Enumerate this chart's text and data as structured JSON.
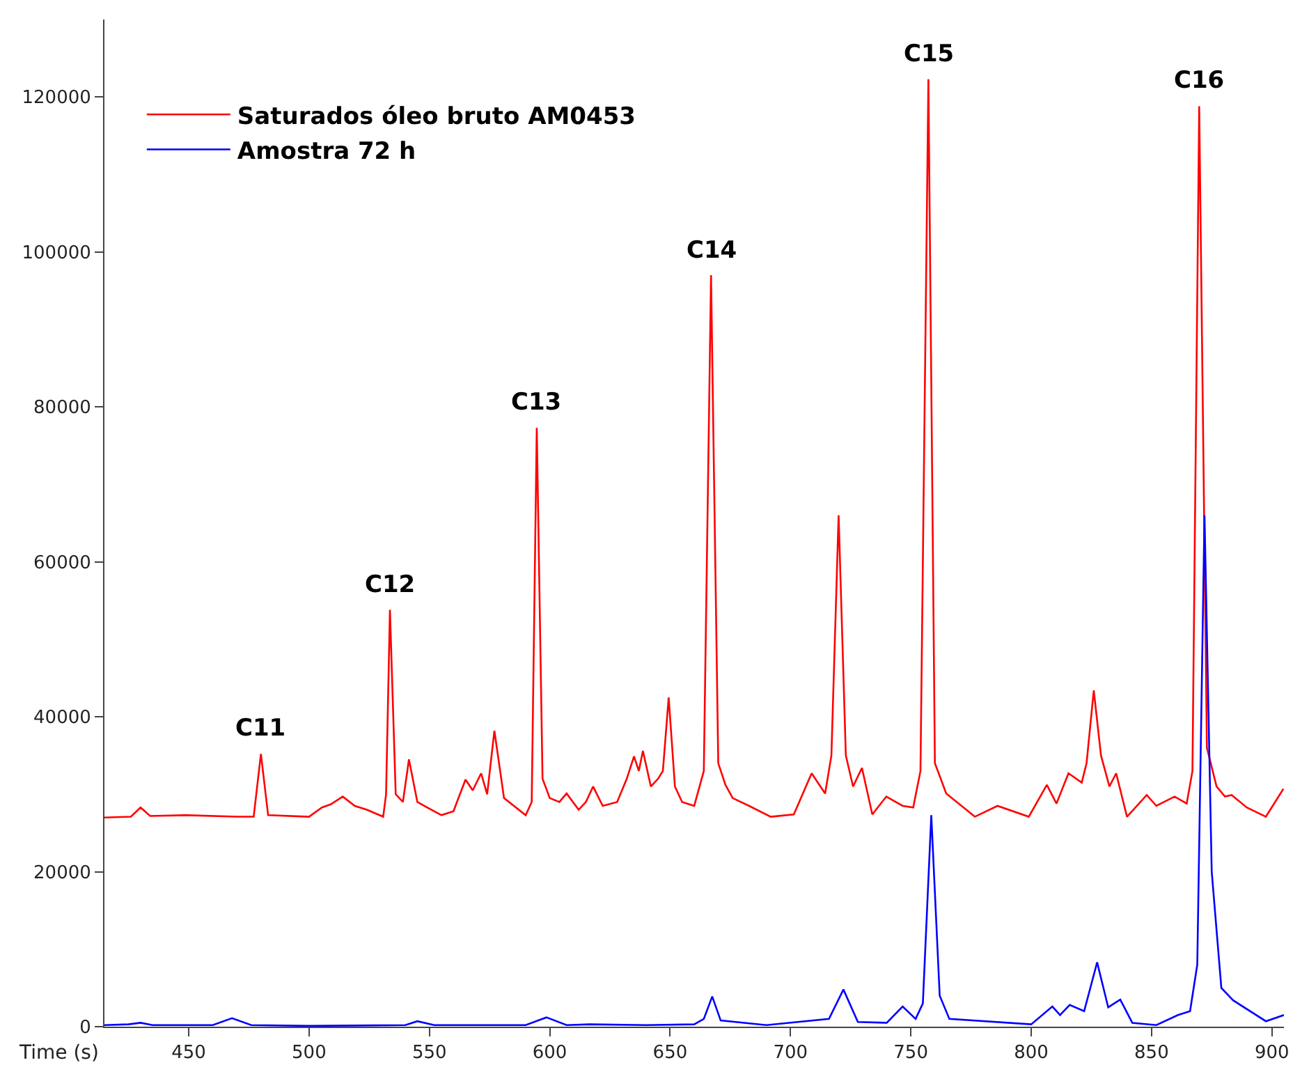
{
  "chart_data": {
    "type": "line",
    "xlabel": "Time (s)",
    "xlim": [
      415,
      905
    ],
    "ylim": [
      0,
      130000
    ],
    "xticks": [
      450,
      500,
      550,
      600,
      650,
      700,
      750,
      800,
      850,
      900
    ],
    "yticks": [
      0,
      20000,
      40000,
      60000,
      80000,
      100000,
      120000
    ],
    "legend": "top left",
    "marker": "none",
    "line_style": "solid",
    "series": [
      {
        "name": "Saturados óleo bruto AM0453",
        "color": "#ff0000",
        "x": [
          415,
          426,
          430,
          434,
          449,
          470,
          477,
          480,
          483,
          500,
          505.4,
          509,
          514,
          519,
          524,
          530.8,
          532,
          533.6,
          536,
          539,
          541.5,
          545,
          549,
          555,
          560,
          565,
          568,
          571.5,
          574,
          577,
          581,
          590,
          592.5,
          594.6,
          597,
          600,
          604,
          607,
          612,
          615,
          618,
          622,
          628,
          632,
          635,
          637,
          638.7,
          642,
          645,
          647,
          649.4,
          652,
          655,
          660,
          664,
          667,
          670,
          673,
          676,
          682.8,
          691.8,
          701.4,
          708.8,
          714.4,
          717,
          720,
          723,
          726,
          729.7,
          734,
          739.8,
          746.6,
          751,
          754,
          757.3,
          760,
          764.7,
          776.6,
          786,
          799,
          806.5,
          810.5,
          815.5,
          821,
          823,
          826,
          829,
          832.5,
          835.3,
          839.8,
          848,
          852,
          859.6,
          864.6,
          867,
          869.8,
          873,
          877,
          880.5,
          883.3,
          889.5,
          897.5,
          904.8
        ],
        "values": [
          27000,
          27100,
          28300,
          27200,
          27300,
          27100,
          27100,
          35200,
          27300,
          27100,
          28300,
          28700,
          29700,
          28500,
          28000,
          27100,
          30000,
          53800,
          30000,
          29000,
          34500,
          29000,
          28300,
          27300,
          27800,
          31900,
          30500,
          32700,
          30000,
          38200,
          29500,
          27300,
          29000,
          77300,
          32000,
          29500,
          29000,
          30100,
          28000,
          29000,
          31000,
          28500,
          29000,
          32000,
          34900,
          33000,
          35600,
          31000,
          32000,
          33000,
          42500,
          31000,
          29000,
          28500,
          33000,
          97000,
          34000,
          31200,
          29500,
          28500,
          27100,
          27400,
          32700,
          30100,
          35000,
          66000,
          35000,
          31000,
          33400,
          27400,
          29700,
          28500,
          28300,
          33000,
          122300,
          34000,
          30100,
          27100,
          28500,
          27100,
          31200,
          28800,
          32700,
          31500,
          34000,
          43400,
          35000,
          31000,
          32700,
          27100,
          29900,
          28500,
          29700,
          28800,
          33000,
          118800,
          36000,
          31000,
          29700,
          29900,
          28300,
          27100,
          30700
        ]
      },
      {
        "name": "Amostra 72 h",
        "color": "#0000ff",
        "x": [
          415,
          425,
          430,
          435,
          460,
          468,
          476,
          500,
          540,
          545,
          552,
          590,
          598.6,
          607,
          616.7,
          640,
          660,
          664,
          667.5,
          671,
          690,
          716,
          722,
          728,
          740,
          746.6,
          752,
          755,
          758.5,
          762,
          766,
          800,
          808.8,
          812,
          816,
          822,
          827.4,
          832,
          837,
          842,
          852,
          861,
          866,
          869,
          872,
          875,
          879,
          883.9,
          897.5,
          905
        ],
        "values": [
          200,
          300,
          500,
          200,
          200,
          1100,
          200,
          100,
          200,
          700,
          200,
          200,
          1200,
          200,
          300,
          200,
          300,
          1000,
          3900,
          800,
          200,
          1000,
          4800,
          600,
          500,
          2600,
          1000,
          3000,
          27300,
          4000,
          1000,
          300,
          2600,
          1500,
          2800,
          2000,
          8300,
          2500,
          3500,
          500,
          200,
          1500,
          2000,
          8000,
          66000,
          20000,
          5000,
          3400,
          700,
          1500
        ]
      }
    ],
    "annotations": [
      {
        "text": "C11",
        "x": 480,
        "y": 35200
      },
      {
        "text": "C12",
        "x": 533.6,
        "y": 53800
      },
      {
        "text": "C13",
        "x": 594.6,
        "y": 77300
      },
      {
        "text": "C14",
        "x": 667,
        "y": 97000
      },
      {
        "text": "C15",
        "x": 757.3,
        "y": 122300
      },
      {
        "text": "C16",
        "x": 869.8,
        "y": 118800
      }
    ]
  }
}
